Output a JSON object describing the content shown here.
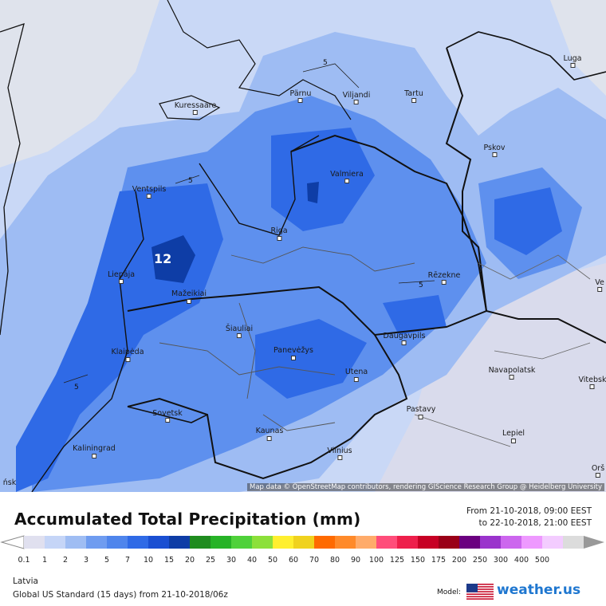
{
  "map": {
    "attribution": "Map data © OpenStreetMap contributors, rendering GIScience Research Group @ Heidelberg University",
    "max_label": "12",
    "isoline_label": "5",
    "cities": [
      "Riga",
      "Pärnu",
      "Viljandi",
      "Tartu",
      "Kuressaare",
      "Ventspils",
      "Valmiera",
      "Pskov",
      "Luga",
      "Liepāja",
      "Mažeikiai",
      "Šiauliai",
      "Panevėžys",
      "Daugavpils",
      "Rēzekne",
      "Utena",
      "Klaipėda",
      "Sovetsk",
      "Kaliningrad",
      "Kaunas",
      "Vilnius",
      "Pastavy",
      "Navapolatsk",
      "Vitebsk",
      "Lepiel",
      "Ve",
      "Orš",
      "ńsk"
    ],
    "colors": {
      "light": "#c9d8f6",
      "mid": "#9ebcf3",
      "blue": "#5e90ee",
      "deep": "#2f6ae6",
      "navy": "#0e3da6",
      "gray": "#dfe3ec"
    }
  },
  "legend": {
    "title": "Accumulated Total Precipitation (mm)",
    "from": "From 21-10-2018, 09:00 EEST",
    "to": "to 22-10-2018, 21:00 EEST",
    "ticks": [
      "0.1",
      "1",
      "2",
      "3",
      "5",
      "7",
      "10",
      "15",
      "20",
      "25",
      "30",
      "40",
      "50",
      "60",
      "70",
      "80",
      "90",
      "100",
      "125",
      "150",
      "175",
      "200",
      "250",
      "300",
      "400",
      "500"
    ],
    "colors": [
      "#e0e0ef",
      "#c5d5f7",
      "#9fbdf3",
      "#6f9cf0",
      "#4f85ec",
      "#2f6ae6",
      "#1a4fd2",
      "#0e3da6",
      "#1f8c1f",
      "#27b327",
      "#4fd13a",
      "#8ce03a",
      "#ffef2f",
      "#f0d21e",
      "#ff6a00",
      "#ff8a2a",
      "#ffab6a",
      "#ff4d7a",
      "#ee1f4b",
      "#c70024",
      "#9a0018",
      "#6b0080",
      "#9a33cc",
      "#cc66ee",
      "#ee99ff",
      "#f3ccff",
      "#dcdcdc"
    ],
    "region": "Latvia",
    "model": "Global US Standard (15 days) from 21-10-2018/06z",
    "model_label": "Model:",
    "brand": "weather.us"
  }
}
